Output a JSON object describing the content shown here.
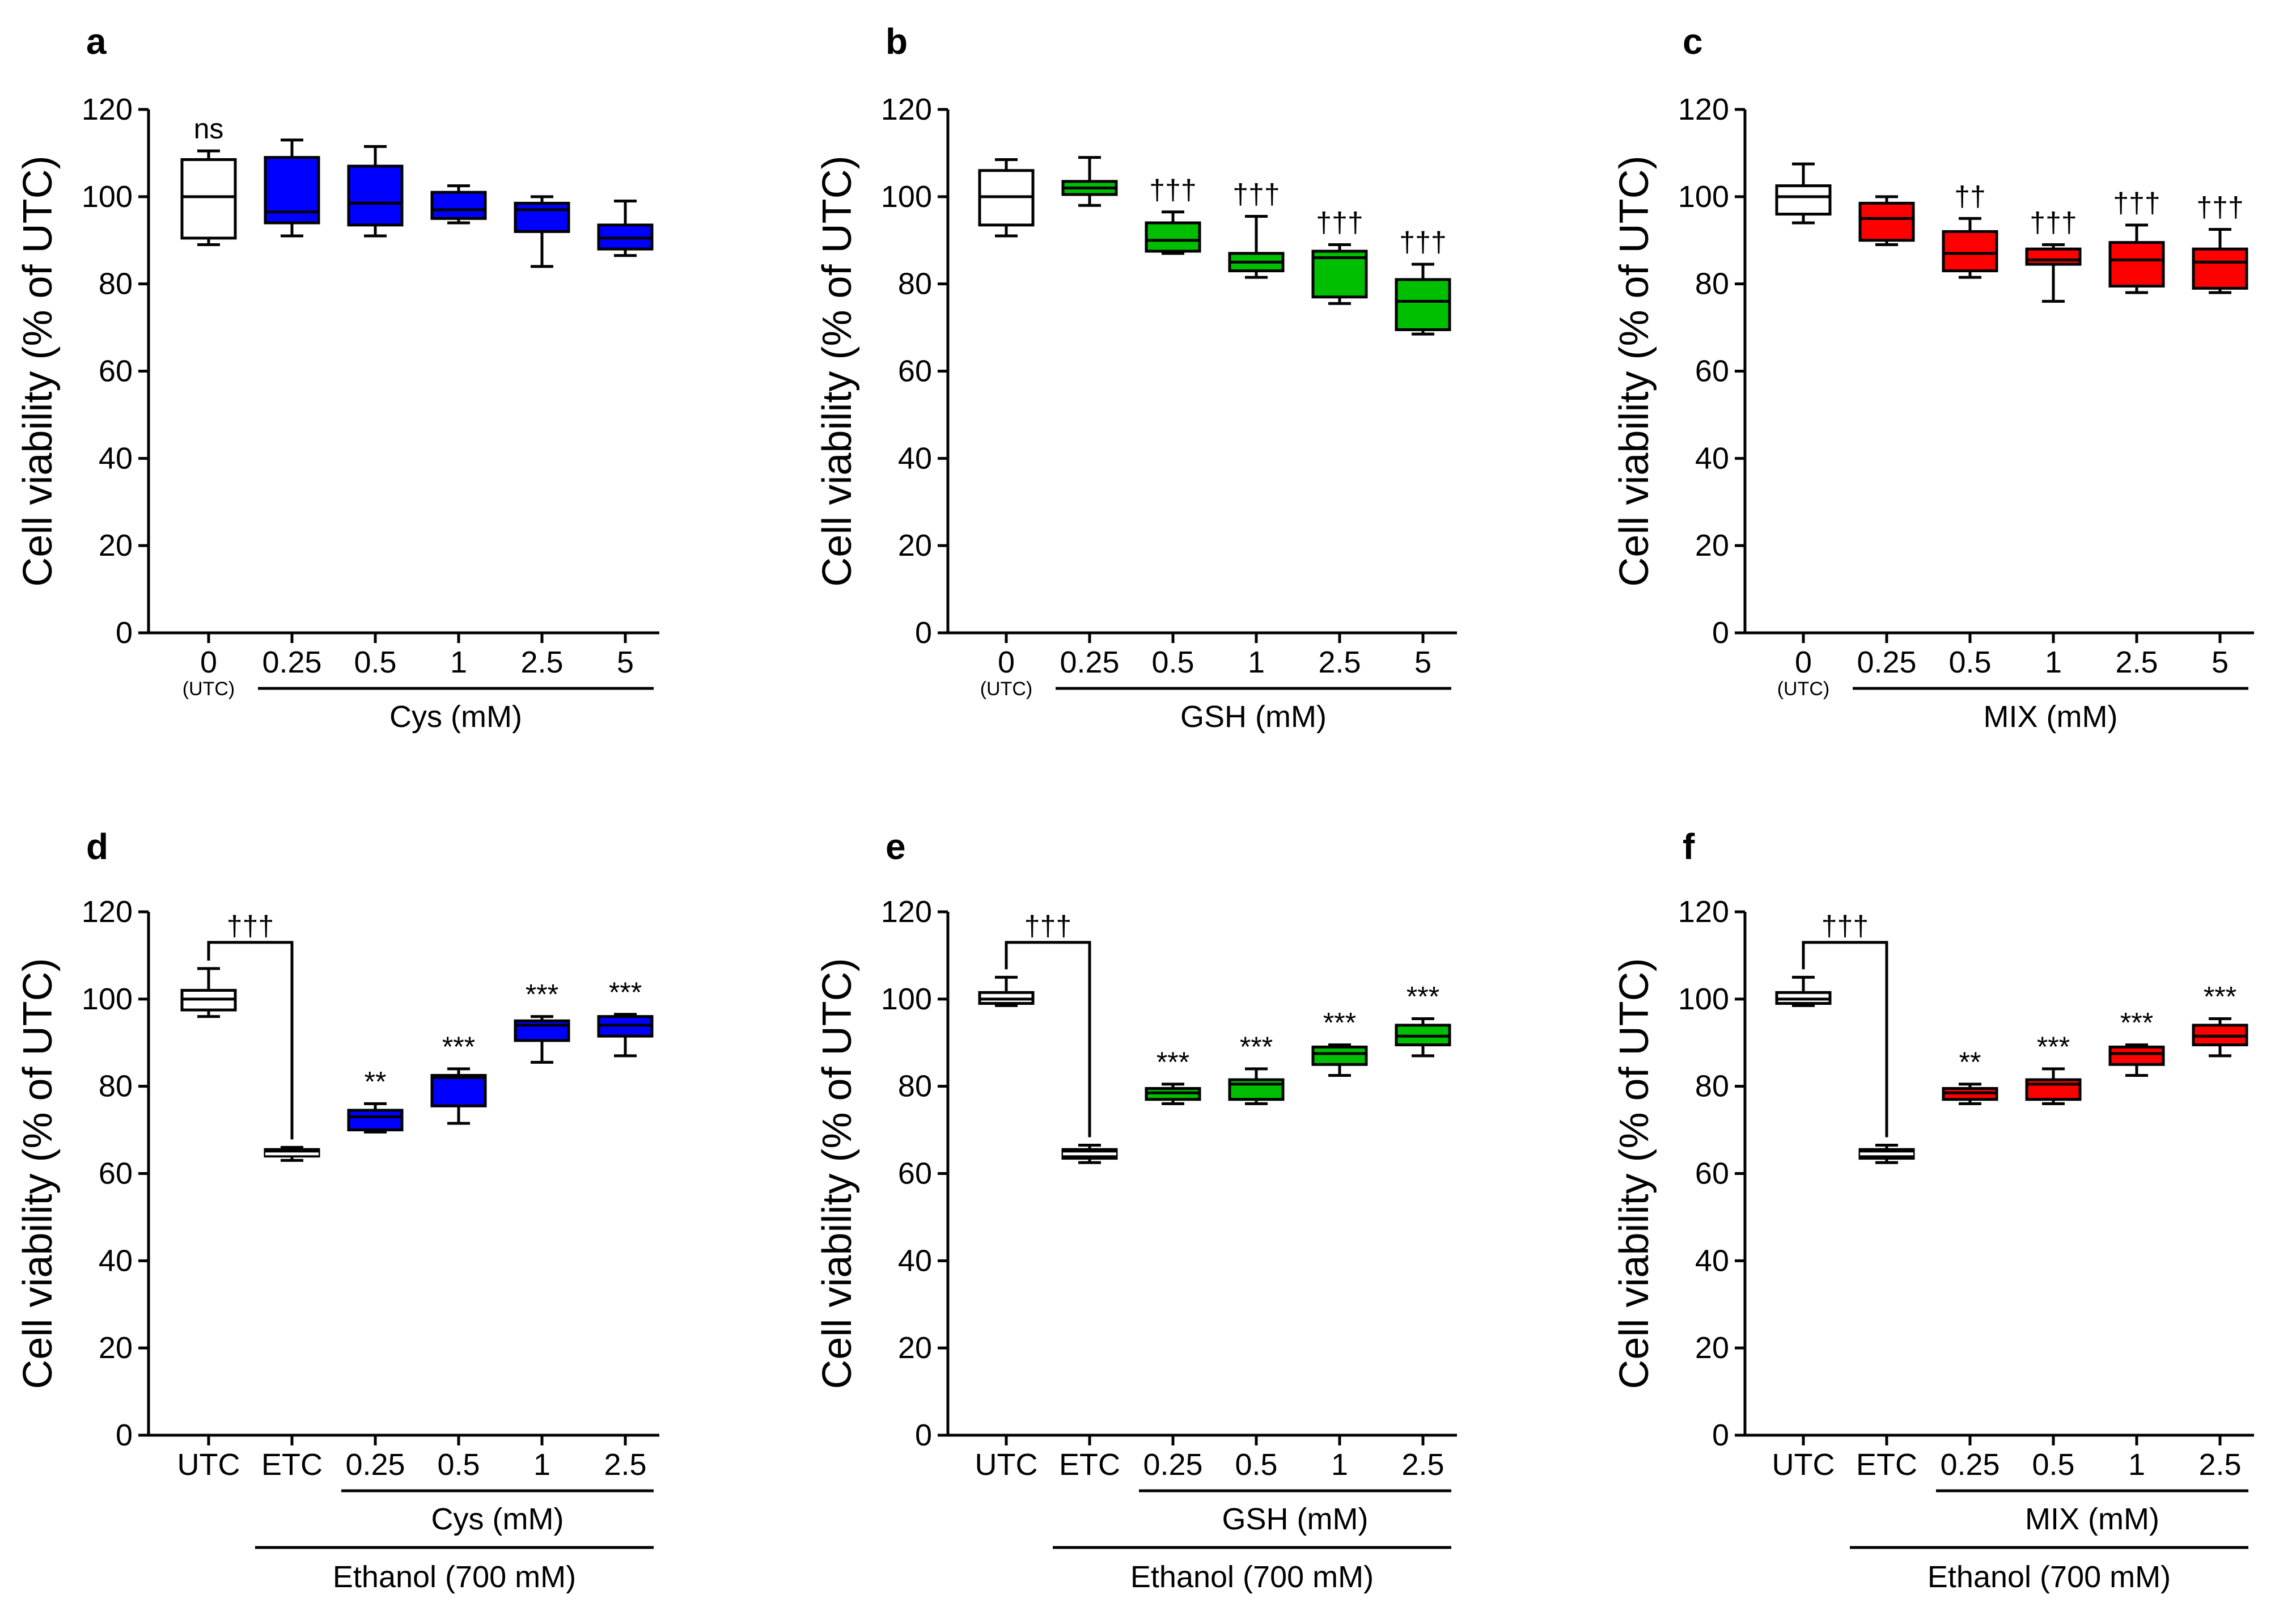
{
  "figure": {
    "ylabel": "Cell viability (% of UTC)",
    "sub_under_zero": "(UTC)"
  },
  "colors": {
    "white": "#ffffff",
    "blue": "#0000ff",
    "green": "#00bf00",
    "red": "#ff0000",
    "black": "#000000"
  },
  "chart_data": [
    {
      "id": "a",
      "letter": "a",
      "type": "box",
      "ylabel": "Cell viability (% of UTC)",
      "ylim": [
        0,
        120
      ],
      "yticks": [
        "0",
        "20",
        "40",
        "60",
        "80",
        "100",
        "120"
      ],
      "categories": [
        "0",
        "0.25",
        "0.5",
        "1",
        "2.5",
        "5"
      ],
      "sub_label": "(UTC)",
      "group_label": "Cys (mM)",
      "outer_label": "",
      "colors": [
        "white",
        "blue",
        "blue",
        "blue",
        "blue",
        "blue"
      ],
      "boxes": [
        {
          "min": 89,
          "q1": 90.5,
          "median": 100,
          "q3": 108.5,
          "max": 110.5
        },
        {
          "min": 91,
          "q1": 94,
          "median": 96.5,
          "q3": 109,
          "max": 113
        },
        {
          "min": 91,
          "q1": 93.5,
          "median": 98.5,
          "q3": 107,
          "max": 111.5
        },
        {
          "min": 94,
          "q1": 95,
          "median": 97,
          "q3": 101,
          "max": 102.5
        },
        {
          "min": 84,
          "q1": 92,
          "median": 97,
          "q3": 98.5,
          "max": 100
        },
        {
          "min": 86.5,
          "q1": 88,
          "median": 90.5,
          "q3": 93.5,
          "max": 99
        }
      ],
      "annotations": [
        "ns",
        "",
        "",
        "",
        "",
        ""
      ],
      "bracket": null
    },
    {
      "id": "b",
      "letter": "b",
      "type": "box",
      "ylabel": "Cell viability (% of UTC)",
      "ylim": [
        0,
        120
      ],
      "yticks": [
        "0",
        "20",
        "40",
        "60",
        "80",
        "100",
        "120"
      ],
      "categories": [
        "0",
        "0.25",
        "0.5",
        "1",
        "2.5",
        "5"
      ],
      "sub_label": "(UTC)",
      "group_label": "GSH (mM)",
      "outer_label": "",
      "colors": [
        "white",
        "green",
        "green",
        "green",
        "green",
        "green"
      ],
      "boxes": [
        {
          "min": 91,
          "q1": 93.5,
          "median": 100,
          "q3": 106,
          "max": 108.5
        },
        {
          "min": 98,
          "q1": 100.5,
          "median": 102,
          "q3": 103.5,
          "max": 109
        },
        {
          "min": 87,
          "q1": 87.5,
          "median": 90,
          "q3": 94,
          "max": 96.5
        },
        {
          "min": 81.5,
          "q1": 83,
          "median": 85,
          "q3": 87,
          "max": 95.5
        },
        {
          "min": 75.5,
          "q1": 77,
          "median": 86,
          "q3": 87.5,
          "max": 89
        },
        {
          "min": 68.5,
          "q1": 69.5,
          "median": 76,
          "q3": 81,
          "max": 84.5
        }
      ],
      "annotations": [
        "",
        "",
        "†††",
        "†††",
        "†††",
        "†††"
      ],
      "bracket": null
    },
    {
      "id": "c",
      "letter": "c",
      "type": "box",
      "ylabel": "Cell viability (% of UTC)",
      "ylim": [
        0,
        120
      ],
      "yticks": [
        "0",
        "20",
        "40",
        "60",
        "80",
        "100",
        "120"
      ],
      "categories": [
        "0",
        "0.25",
        "0.5",
        "1",
        "2.5",
        "5"
      ],
      "sub_label": "(UTC)",
      "group_label": "MIX (mM)",
      "outer_label": "",
      "colors": [
        "white",
        "red",
        "red",
        "red",
        "red",
        "red"
      ],
      "boxes": [
        {
          "min": 94,
          "q1": 96,
          "median": 100,
          "q3": 102.5,
          "max": 107.5
        },
        {
          "min": 89,
          "q1": 90,
          "median": 95,
          "q3": 98.5,
          "max": 100
        },
        {
          "min": 81.5,
          "q1": 83,
          "median": 87,
          "q3": 92,
          "max": 95
        },
        {
          "min": 76,
          "q1": 84.5,
          "median": 85.5,
          "q3": 88,
          "max": 89
        },
        {
          "min": 78,
          "q1": 79.5,
          "median": 85.5,
          "q3": 89.5,
          "max": 93.5
        },
        {
          "min": 78,
          "q1": 79,
          "median": 85,
          "q3": 88,
          "max": 92.5
        }
      ],
      "annotations": [
        "",
        "",
        "††",
        "†††",
        "†††",
        "†††"
      ],
      "bracket": null
    },
    {
      "id": "d",
      "letter": "d",
      "type": "box",
      "ylabel": "Cell viability (% of UTC)",
      "ylim": [
        0,
        120
      ],
      "yticks": [
        "0",
        "20",
        "40",
        "60",
        "80",
        "100",
        "120"
      ],
      "categories": [
        "UTC",
        "ETC",
        "0.25",
        "0.5",
        "1",
        "2.5"
      ],
      "sub_label": "",
      "group_label": "Cys (mM)",
      "outer_label": "Ethanol (700 mM)",
      "colors": [
        "white",
        "black",
        "blue",
        "blue",
        "blue",
        "blue"
      ],
      "boxes": [
        {
          "min": 96,
          "q1": 97.5,
          "median": 100,
          "q3": 102,
          "max": 107
        },
        {
          "min": 63,
          "q1": 64,
          "median": 64.5,
          "q3": 65.5,
          "max": 66
        },
        {
          "min": 69.5,
          "q1": 70,
          "median": 73,
          "q3": 74.5,
          "max": 76
        },
        {
          "min": 71.5,
          "q1": 75.5,
          "median": 82,
          "q3": 82.5,
          "max": 84
        },
        {
          "min": 85.5,
          "q1": 90.5,
          "median": 94,
          "q3": 95,
          "max": 96
        },
        {
          "min": 87,
          "q1": 91.5,
          "median": 94,
          "q3": 96,
          "max": 96.5
        }
      ],
      "annotations": [
        "",
        "",
        "**",
        "***",
        "***",
        "***"
      ],
      "bracket": {
        "label": "†††",
        "y": 113
      }
    },
    {
      "id": "e",
      "letter": "e",
      "type": "box",
      "ylabel": "Cell viability (% of UTC)",
      "ylim": [
        0,
        120
      ],
      "yticks": [
        "0",
        "20",
        "40",
        "60",
        "80",
        "100",
        "120"
      ],
      "categories": [
        "UTC",
        "ETC",
        "0.25",
        "0.5",
        "1",
        "2.5"
      ],
      "sub_label": "",
      "group_label": "GSH (mM)",
      "outer_label": "Ethanol (700 mM)",
      "colors": [
        "white",
        "black",
        "green",
        "green",
        "green",
        "green"
      ],
      "boxes": [
        {
          "min": 98.5,
          "q1": 99,
          "median": 100,
          "q3": 101.5,
          "max": 105
        },
        {
          "min": 62.5,
          "q1": 63.5,
          "median": 64.5,
          "q3": 65.5,
          "max": 66.5
        },
        {
          "min": 76,
          "q1": 77,
          "median": 78.5,
          "q3": 79.5,
          "max": 80.5
        },
        {
          "min": 76,
          "q1": 77,
          "median": 80.5,
          "q3": 81.5,
          "max": 84
        },
        {
          "min": 82.5,
          "q1": 85,
          "median": 87.5,
          "q3": 89,
          "max": 89.5
        },
        {
          "min": 87,
          "q1": 89.5,
          "median": 91.5,
          "q3": 94,
          "max": 95.5
        }
      ],
      "annotations": [
        "",
        "",
        "***",
        "***",
        "***",
        "***"
      ],
      "bracket": {
        "label": "†††",
        "y": 113
      }
    },
    {
      "id": "f",
      "letter": "f",
      "type": "box",
      "ylabel": "Cell viability (% of UTC)",
      "ylim": [
        0,
        120
      ],
      "yticks": [
        "0",
        "20",
        "40",
        "60",
        "80",
        "100",
        "120"
      ],
      "categories": [
        "UTC",
        "ETC",
        "0.25",
        "0.5",
        "1",
        "2.5"
      ],
      "sub_label": "",
      "group_label": "MIX (mM)",
      "outer_label": "Ethanol (700 mM)",
      "colors": [
        "white",
        "black",
        "red",
        "red",
        "red",
        "red"
      ],
      "boxes": [
        {
          "min": 98.5,
          "q1": 99,
          "median": 100,
          "q3": 101.5,
          "max": 105
        },
        {
          "min": 62.5,
          "q1": 63.5,
          "median": 64.5,
          "q3": 65.5,
          "max": 66.5
        },
        {
          "min": 76,
          "q1": 77,
          "median": 78.5,
          "q3": 79.5,
          "max": 80.5
        },
        {
          "min": 76,
          "q1": 77,
          "median": 80.5,
          "q3": 81.5,
          "max": 84
        },
        {
          "min": 82.5,
          "q1": 85,
          "median": 87.5,
          "q3": 89,
          "max": 89.5
        },
        {
          "min": 87,
          "q1": 89.5,
          "median": 91.5,
          "q3": 94,
          "max": 95.5
        }
      ],
      "annotations": [
        "",
        "",
        "**",
        "***",
        "***",
        "***"
      ],
      "bracket": {
        "label": "†††",
        "y": 113
      }
    }
  ]
}
